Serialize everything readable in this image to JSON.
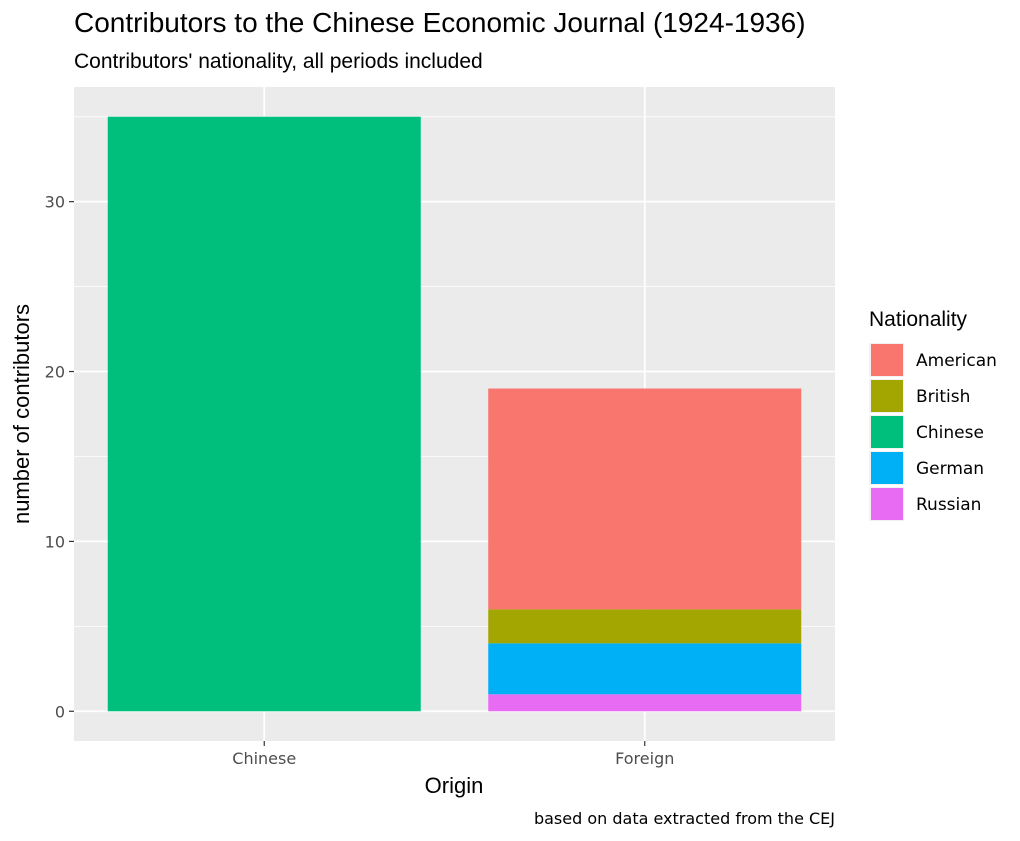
{
  "chart_data": {
    "type": "bar",
    "stacked": true,
    "title": "Contributors to the Chinese Economic Journal (1924-1936)",
    "subtitle": "Contributors' nationality, all periods included",
    "xlabel": "Origin",
    "ylabel": "number of contributors",
    "caption": "based on data extracted from the CEJ",
    "categories": [
      "Chinese",
      "Foreign"
    ],
    "ylim": [
      -1.75,
      36.75
    ],
    "yticks": [
      0,
      10,
      20,
      30
    ],
    "grid": true,
    "legend": {
      "title": "Nationality",
      "position": "right"
    },
    "series": [
      {
        "name": "American",
        "color": "#F8766D",
        "values": [
          0,
          13
        ]
      },
      {
        "name": "British",
        "color": "#A3A500",
        "values": [
          0,
          2
        ]
      },
      {
        "name": "Chinese",
        "color": "#00BF7D",
        "values": [
          35,
          0
        ]
      },
      {
        "name": "German",
        "color": "#00B0F6",
        "values": [
          0,
          3
        ]
      },
      {
        "name": "Russian",
        "color": "#E76BF3",
        "values": [
          0,
          1
        ]
      }
    ]
  }
}
